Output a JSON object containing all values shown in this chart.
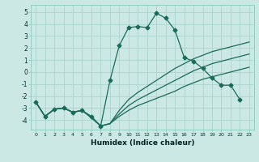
{
  "xlabel": "Humidex (Indice chaleur)",
  "bg_color": "#cce8e4",
  "grid_color": "#aad4ce",
  "line_color": "#1a6b5a",
  "xlim": [
    -0.5,
    23.5
  ],
  "ylim": [
    -4.8,
    5.6
  ],
  "yticks": [
    -4,
    -3,
    -2,
    -1,
    0,
    1,
    2,
    3,
    4,
    5
  ],
  "xticks": [
    0,
    1,
    2,
    3,
    4,
    5,
    6,
    7,
    8,
    9,
    10,
    11,
    12,
    13,
    14,
    15,
    16,
    17,
    18,
    19,
    20,
    21,
    22,
    23
  ],
  "line1_x": [
    0,
    1,
    2,
    3,
    4,
    5,
    6,
    7,
    8,
    9,
    10,
    11,
    12,
    13,
    14,
    15,
    16,
    17,
    18,
    19,
    20,
    21,
    22,
    23
  ],
  "line1_y": [
    -2.5,
    -3.7,
    -3.1,
    -3.0,
    -3.35,
    -3.2,
    -3.7,
    -4.5,
    -0.7,
    2.2,
    3.7,
    3.8,
    3.7,
    4.9,
    4.5,
    3.5,
    1.2,
    0.9,
    0.3,
    -0.5,
    -1.1,
    -1.1,
    -2.3,
    null
  ],
  "line2_x": [
    0,
    1,
    2,
    3,
    4,
    5,
    6,
    7,
    8,
    9,
    10,
    11,
    12,
    13,
    14,
    15,
    16,
    17,
    18,
    19,
    20,
    21,
    22,
    23
  ],
  "line2_y": [
    -2.5,
    -3.7,
    -3.1,
    -3.0,
    -3.35,
    -3.2,
    -3.8,
    -4.5,
    -4.3,
    -3.7,
    -3.2,
    -2.8,
    -2.5,
    -2.2,
    -1.9,
    -1.6,
    -1.2,
    -0.9,
    -0.6,
    -0.4,
    -0.2,
    0.0,
    0.2,
    0.4
  ],
  "line3_x": [
    0,
    1,
    2,
    3,
    4,
    5,
    6,
    7,
    8,
    9,
    10,
    11,
    12,
    13,
    14,
    15,
    16,
    17,
    18,
    19,
    20,
    21,
    22,
    23
  ],
  "line3_y": [
    -2.5,
    -3.7,
    -3.1,
    -3.0,
    -3.35,
    -3.2,
    -3.8,
    -4.5,
    -4.3,
    -3.5,
    -2.8,
    -2.3,
    -1.9,
    -1.5,
    -1.1,
    -0.7,
    -0.3,
    0.1,
    0.4,
    0.7,
    0.9,
    1.1,
    1.3,
    1.5
  ],
  "line4_x": [
    0,
    1,
    2,
    3,
    4,
    5,
    6,
    7,
    8,
    9,
    10,
    11,
    12,
    13,
    14,
    15,
    16,
    17,
    18,
    19,
    20,
    21,
    22,
    23
  ],
  "line4_y": [
    -2.5,
    -3.7,
    -3.1,
    -3.0,
    -3.35,
    -3.2,
    -3.8,
    -4.5,
    -4.3,
    -3.2,
    -2.3,
    -1.7,
    -1.2,
    -0.7,
    -0.2,
    0.3,
    0.7,
    1.1,
    1.4,
    1.7,
    1.9,
    2.1,
    2.3,
    2.5
  ],
  "marker_x": [
    0,
    1,
    2,
    3,
    4,
    5,
    6,
    7,
    8,
    9,
    10,
    11,
    12,
    13,
    14,
    15,
    16,
    17,
    18,
    19,
    20,
    21,
    22
  ],
  "marker_y": [
    -2.5,
    -3.7,
    -3.1,
    -3.0,
    -3.35,
    -3.2,
    -3.7,
    -4.5,
    -0.7,
    2.2,
    3.7,
    3.8,
    3.7,
    4.9,
    4.5,
    3.5,
    1.2,
    0.9,
    0.3,
    -0.5,
    -1.1,
    -1.1,
    -2.3
  ]
}
